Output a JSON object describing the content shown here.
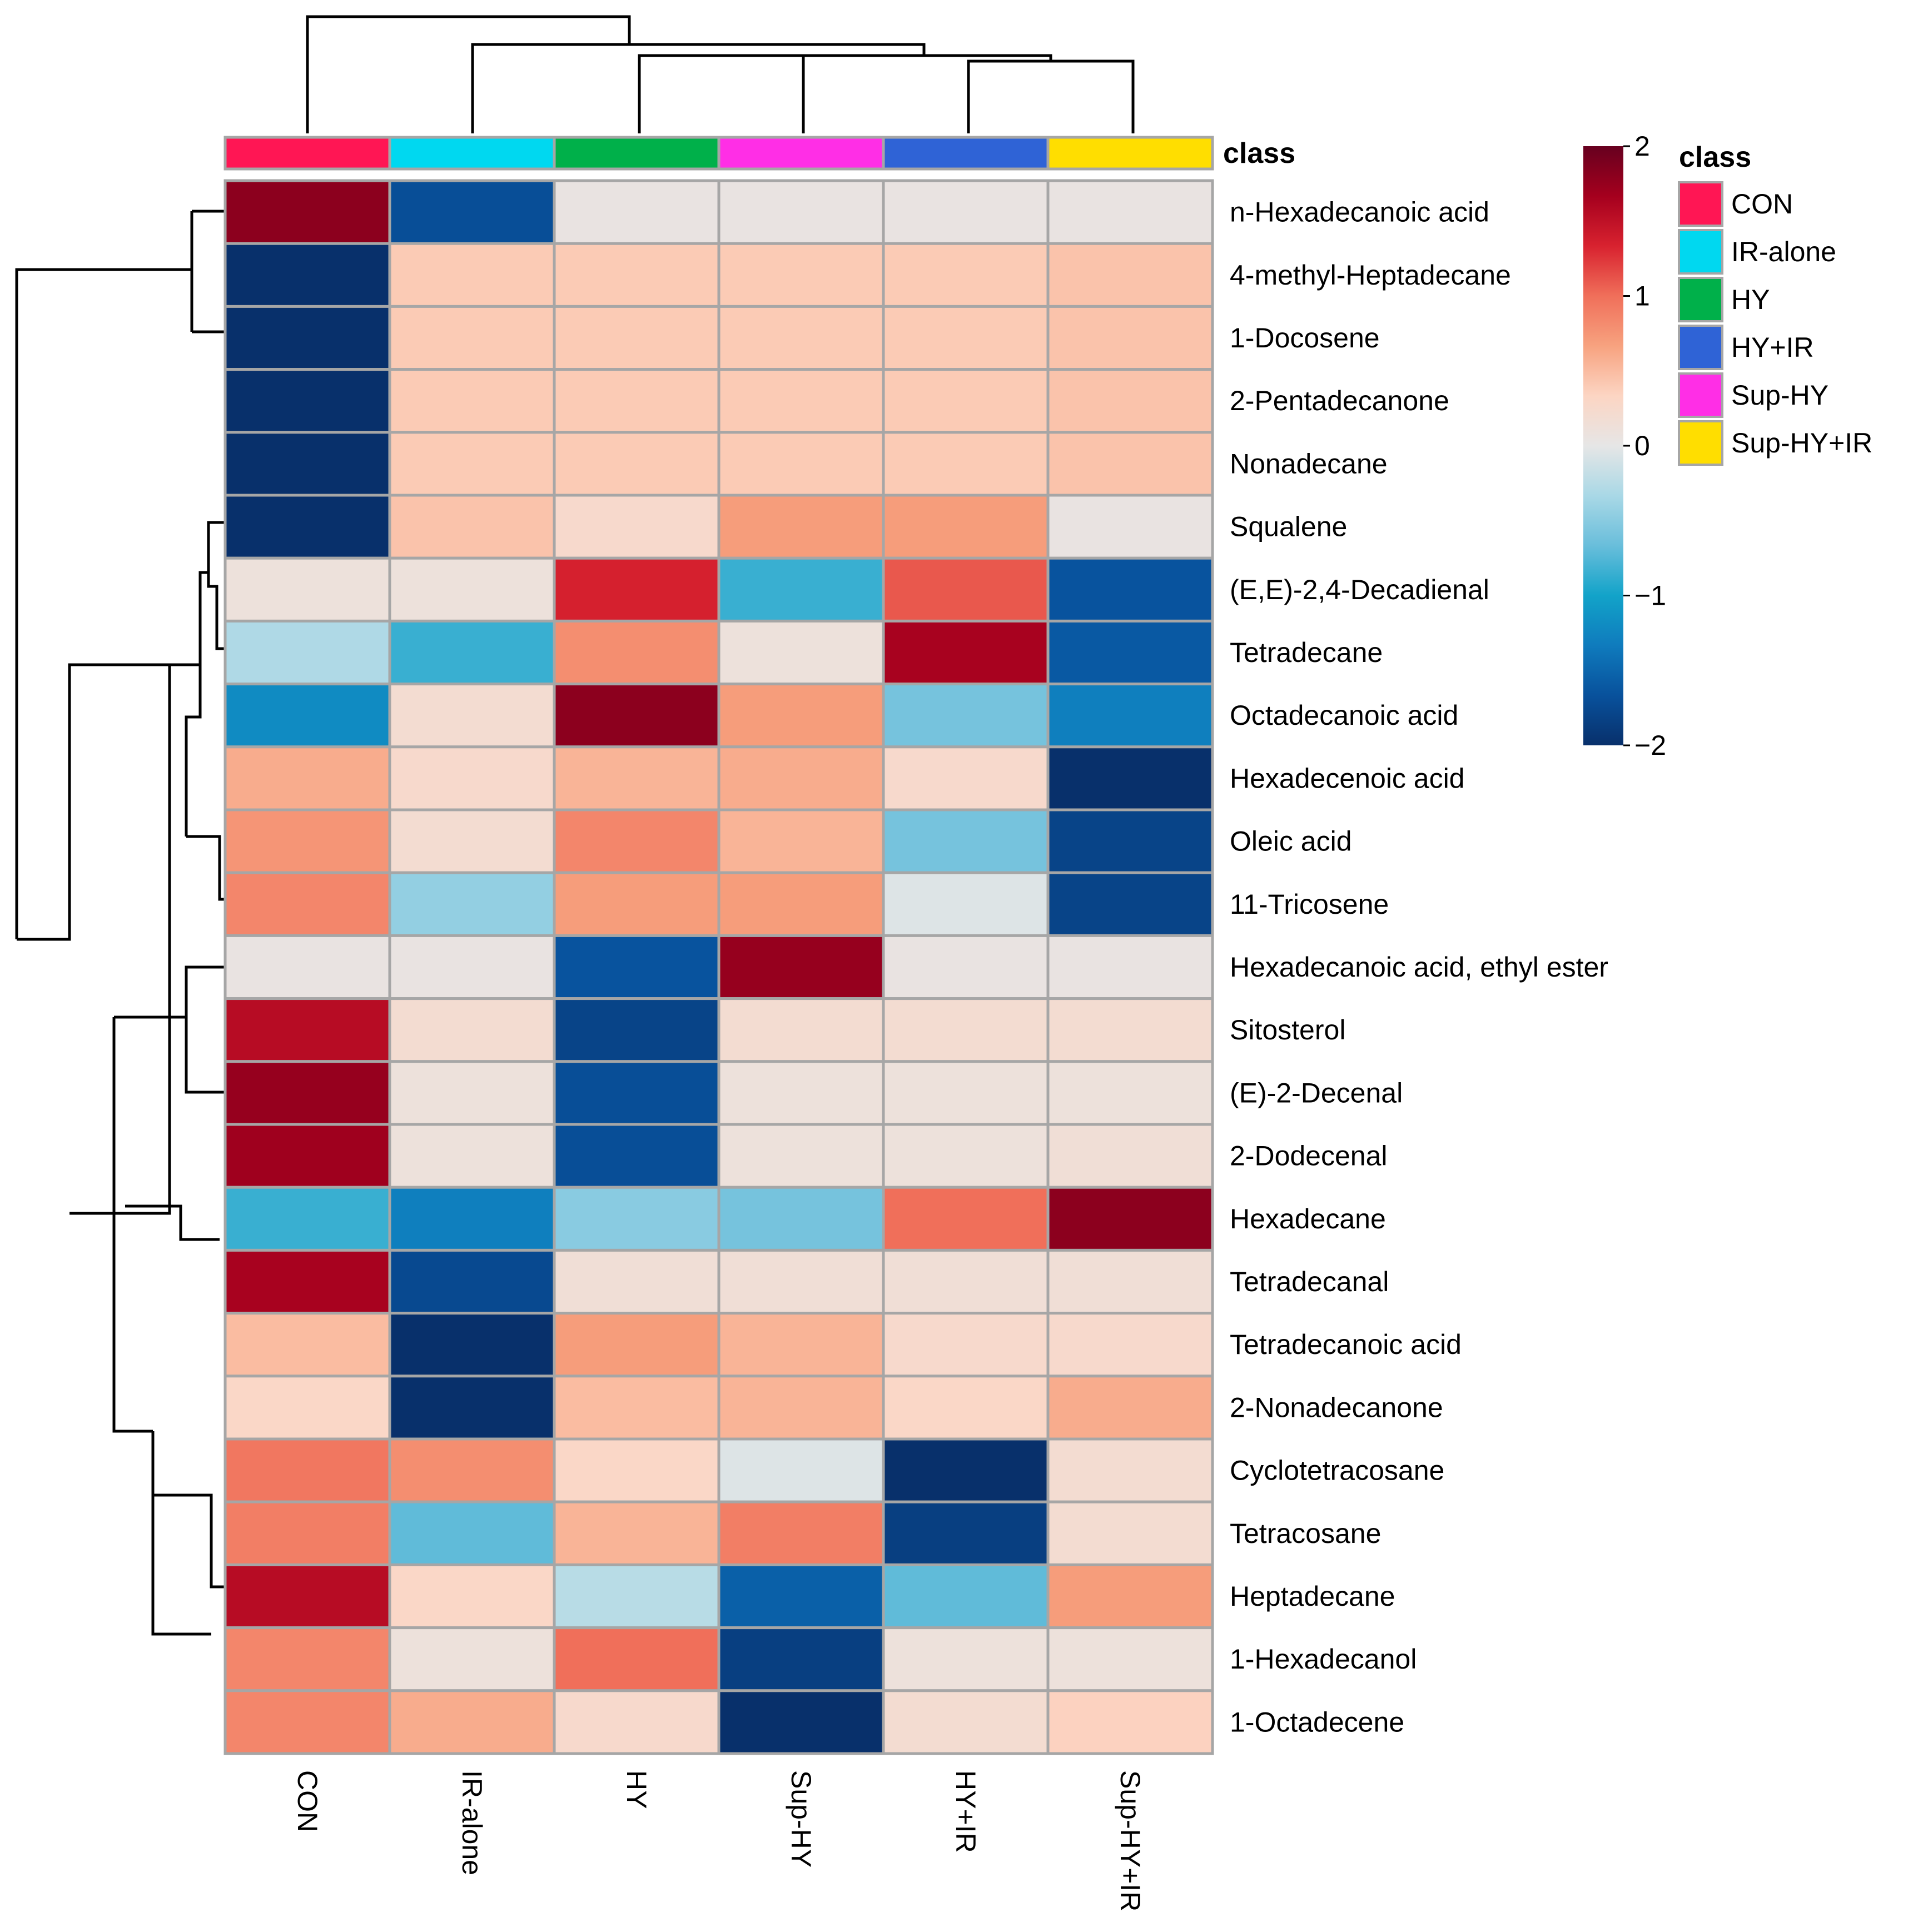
{
  "chart_data": {
    "type": "heatmap",
    "title": "",
    "annotation_title": "class",
    "legend_title": "class",
    "columns": [
      "CON",
      "IR-alone",
      "HY",
      "Sup-HY",
      "HY+IR",
      "Sup-HY+IR"
    ],
    "column_classes": [
      "CON",
      "IR-alone",
      "HY",
      "Sup-HY",
      "HY+IR",
      "Sup-HY+IR"
    ],
    "legend_entries": [
      "CON",
      "IR-alone",
      "HY",
      "HY+IR",
      "Sup-HY",
      "Sup-HY+IR"
    ],
    "class_colors": {
      "CON": "#ff1654",
      "IR-alone": "#00d8f0",
      "HY": "#00b04a",
      "HY+IR": "#2f63d6",
      "Sup-HY": "#ff2ee6",
      "Sup-HY+IR": "#ffde00"
    },
    "colorbar": {
      "min": -2,
      "max": 2,
      "ticks": [
        2,
        1,
        0,
        -1,
        -2
      ],
      "tick_labels": [
        "2",
        "1",
        "0",
        "−1",
        "−2"
      ],
      "colors": [
        "#08306b",
        "#08519c",
        "#0f7bbd",
        "#12a3c9",
        "#69bedb",
        "#a9d8e6",
        "#e6e6e6",
        "#fcd5c3",
        "#f7a27f",
        "#f06f5a",
        "#d8222f",
        "#a5001e",
        "#67001f"
      ]
    },
    "rows": [
      {
        "name": "n-Hexadecanoic acid",
        "values": [
          1.8,
          -1.7,
          0.05,
          0.05,
          0.05,
          0.05
        ]
      },
      {
        "name": "4-methyl-Heptadecane",
        "values": [
          -2.0,
          0.4,
          0.4,
          0.4,
          0.4,
          0.45
        ]
      },
      {
        "name": "1-Docosene",
        "values": [
          -2.0,
          0.4,
          0.4,
          0.4,
          0.4,
          0.45
        ]
      },
      {
        "name": "2-Pentadecanone",
        "values": [
          -2.0,
          0.4,
          0.4,
          0.4,
          0.4,
          0.45
        ]
      },
      {
        "name": "Nonadecane",
        "values": [
          -2.0,
          0.4,
          0.4,
          0.4,
          0.4,
          0.45
        ]
      },
      {
        "name": "Squalene",
        "values": [
          -2.0,
          0.45,
          0.25,
          0.7,
          0.7,
          0.05
        ]
      },
      {
        "name": "(E,E)-2,4-Decadienal",
        "values": [
          0.1,
          0.1,
          1.35,
          -0.85,
          1.1,
          -1.65
        ]
      },
      {
        "name": "Tetradecane",
        "values": [
          -0.3,
          -0.85,
          0.8,
          0.1,
          1.65,
          -1.6
        ]
      },
      {
        "name": "Octadecanoic acid",
        "values": [
          -1.2,
          0.2,
          1.8,
          0.7,
          -0.6,
          -1.3
        ]
      },
      {
        "name": "Hexadecenoic acid",
        "values": [
          0.6,
          0.25,
          0.55,
          0.6,
          0.25,
          -2.0
        ]
      },
      {
        "name": "Oleic acid",
        "values": [
          0.75,
          0.2,
          0.85,
          0.55,
          -0.6,
          -1.8
        ]
      },
      {
        "name": "11-Tricosene",
        "values": [
          0.85,
          -0.45,
          0.7,
          0.7,
          -0.05,
          -1.8
        ]
      },
      {
        "name": "Hexadecanoic acid, ethyl ester",
        "values": [
          0.05,
          0.05,
          -1.65,
          1.75,
          0.05,
          0.05
        ]
      },
      {
        "name": "Sitosterol",
        "values": [
          1.55,
          0.2,
          -1.8,
          0.2,
          0.2,
          0.2
        ]
      },
      {
        "name": "(E)-2-Decenal",
        "values": [
          1.75,
          0.1,
          -1.7,
          0.1,
          0.1,
          0.1
        ]
      },
      {
        "name": "2-Dodecenal",
        "values": [
          1.7,
          0.1,
          -1.7,
          0.1,
          0.1,
          0.15
        ]
      },
      {
        "name": "Hexadecane",
        "values": [
          -0.85,
          -1.3,
          -0.5,
          -0.6,
          1.0,
          1.8
        ]
      },
      {
        "name": "Tetradecanal",
        "values": [
          1.65,
          -1.75,
          0.15,
          0.15,
          0.15,
          0.15
        ]
      },
      {
        "name": "Tetradecanoic acid",
        "values": [
          0.5,
          -2.0,
          0.7,
          0.55,
          0.25,
          0.25
        ]
      },
      {
        "name": "2-Nonadecanone",
        "values": [
          0.3,
          -2.0,
          0.5,
          0.55,
          0.3,
          0.6
        ]
      },
      {
        "name": "Cyclotetracosane",
        "values": [
          0.95,
          0.8,
          0.3,
          -0.05,
          -2.0,
          0.2
        ]
      },
      {
        "name": "Tetracosane",
        "values": [
          0.9,
          -0.7,
          0.55,
          0.9,
          -1.85,
          0.2
        ]
      },
      {
        "name": "Heptadecane",
        "values": [
          1.55,
          0.3,
          -0.25,
          -1.55,
          -0.7,
          0.7
        ]
      },
      {
        "name": "1-Hexadecanol",
        "values": [
          0.85,
          0.1,
          1.0,
          -1.85,
          0.1,
          0.1
        ]
      },
      {
        "name": "1-Octadecene",
        "values": [
          0.85,
          0.6,
          0.25,
          -2.0,
          0.2,
          0.35
        ]
      }
    ]
  }
}
